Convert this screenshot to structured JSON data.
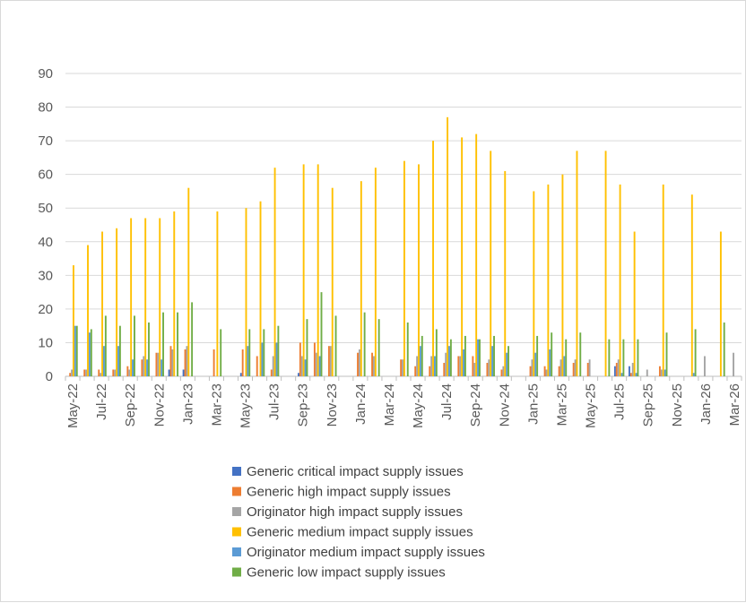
{
  "chart_data": {
    "type": "bar",
    "title": "",
    "xlabel": "",
    "ylabel": "",
    "ylim": [
      0,
      90
    ],
    "yticks": [
      0,
      10,
      20,
      30,
      40,
      50,
      60,
      70,
      80,
      90
    ],
    "grid": true,
    "legend_position": "bottom",
    "categories": [
      "May-22",
      "Jun-22",
      "Jul-22",
      "Aug-22",
      "Sep-22",
      "Oct-22",
      "Nov-22",
      "Dec-22",
      "Jan-23",
      "Feb-23",
      "Mar-23",
      "Apr-23",
      "May-23",
      "Jun-23",
      "Jul-23",
      "Aug-23",
      "Sep-23",
      "Oct-23",
      "Nov-23",
      "Dec-23",
      "Jan-24",
      "Feb-24",
      "Mar-24",
      "Apr-24",
      "May-24",
      "Jun-24",
      "Jul-24",
      "Aug-24",
      "Sep-24",
      "Oct-24",
      "Nov-24",
      "Dec-24",
      "Jan-25",
      "Feb-25",
      "Mar-25",
      "Apr-25",
      "May-25",
      "Jun-25",
      "Jul-25",
      "Aug-25",
      "Sep-25",
      "Oct-25",
      "Nov-25",
      "Dec-25",
      "Jan-26",
      "Feb-26",
      "Mar-26"
    ],
    "tick_labels": [
      "May-22",
      "Jul-22",
      "Sep-22",
      "Nov-22",
      "Jan-23",
      "Mar-23",
      "May-23",
      "Jul-23",
      "Sep-23",
      "Nov-23",
      "Jan-24",
      "Mar-24",
      "May-24",
      "Jul-24",
      "Sep-24",
      "Nov-24",
      "Jan-25",
      "Mar-25",
      "May-25",
      "Jul-25",
      "Sep-25",
      "Nov-25",
      "Jan-26",
      "Mar-26"
    ],
    "series": [
      {
        "name": "Generic critical impact supply issues",
        "color": "#4472C4",
        "values": [
          0,
          0,
          0,
          0,
          0,
          0,
          0,
          2,
          2,
          0,
          0,
          0,
          1,
          0,
          0,
          0,
          1,
          0,
          0,
          0,
          0,
          0,
          0,
          0,
          0,
          0,
          0,
          0,
          0,
          0,
          0,
          0,
          0,
          0,
          0,
          0,
          0,
          0,
          3,
          3,
          0,
          0,
          0,
          0,
          0,
          0,
          0
        ]
      },
      {
        "name": "Generic high impact supply issues",
        "color": "#ED7D31",
        "values": [
          1,
          2,
          2,
          2,
          3,
          5,
          7,
          9,
          8,
          0,
          8,
          0,
          8,
          6,
          2,
          0,
          10,
          10,
          9,
          0,
          7,
          7,
          0,
          5,
          3,
          3,
          4,
          6,
          6,
          4,
          2,
          0,
          3,
          3,
          3,
          4,
          4,
          0,
          4,
          1,
          0,
          3,
          0,
          0,
          0,
          0,
          0
        ]
      },
      {
        "name": "Originator high impact supply issues",
        "color": "#A5A5A5",
        "values": [
          2,
          2,
          1,
          2,
          2,
          6,
          7,
          8,
          9,
          0,
          0,
          0,
          0,
          0,
          6,
          0,
          6,
          7,
          9,
          0,
          8,
          6,
          0,
          5,
          6,
          6,
          7,
          6,
          4,
          5,
          3,
          0,
          5,
          2,
          5,
          5,
          5,
          0,
          5,
          4,
          2,
          2,
          0,
          0,
          6,
          0,
          7
        ]
      },
      {
        "name": "Generic medium impact supply issues",
        "color": "#FFC000",
        "values": [
          33,
          39,
          43,
          44,
          47,
          47,
          47,
          49,
          56,
          0,
          49,
          0,
          50,
          52,
          62,
          0,
          63,
          63,
          56,
          0,
          58,
          62,
          0,
          64,
          63,
          70,
          77,
          71,
          72,
          67,
          61,
          0,
          55,
          57,
          60,
          67,
          0,
          67,
          57,
          43,
          0,
          57,
          0,
          54,
          0,
          43,
          0
        ]
      },
      {
        "name": "Originator medium impact supply issues",
        "color": "#5B9BD5",
        "values": [
          15,
          13,
          9,
          9,
          5,
          5,
          5,
          0,
          0,
          0,
          0,
          0,
          9,
          10,
          10,
          0,
          5,
          6,
          0,
          0,
          0,
          0,
          0,
          0,
          9,
          6,
          9,
          8,
          11,
          9,
          7,
          0,
          7,
          8,
          6,
          0,
          0,
          0,
          1,
          1,
          0,
          2,
          0,
          1,
          0,
          0,
          0
        ]
      },
      {
        "name": "Generic low impact supply issues",
        "color": "#70AD47",
        "values": [
          15,
          14,
          18,
          15,
          18,
          16,
          19,
          19,
          22,
          0,
          14,
          0,
          14,
          14,
          15,
          0,
          17,
          25,
          18,
          0,
          19,
          17,
          0,
          16,
          12,
          14,
          11,
          12,
          11,
          12,
          9,
          0,
          12,
          13,
          11,
          13,
          0,
          11,
          11,
          11,
          0,
          13,
          0,
          14,
          0,
          16,
          0
        ]
      }
    ]
  }
}
